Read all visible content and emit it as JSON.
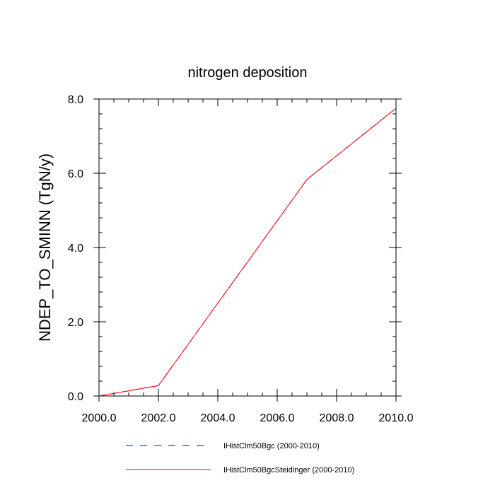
{
  "chart_data": {
    "type": "line",
    "title": "nitrogen deposition",
    "xlabel": "",
    "ylabel": "NDEP_TO_SMINN  (TgN/y)",
    "xlim": [
      2000,
      2010
    ],
    "ylim": [
      0,
      8
    ],
    "x_ticks": [
      "2000.0",
      "2002.0",
      "2004.0",
      "2006.0",
      "2008.0",
      "2010.0"
    ],
    "y_ticks": [
      "0.0",
      "2.0",
      "4.0",
      "6.0",
      "8.0"
    ],
    "grid": false,
    "legend_position": "bottom",
    "series": [
      {
        "name": "IHistClm50Bgc (2000-2010)",
        "color": "#0000ff",
        "style": "dashed",
        "x": [
          2000,
          2002,
          2007,
          2010
        ],
        "y": [
          0.0,
          0.28,
          5.83,
          7.75
        ]
      },
      {
        "name": "IHistClm50BgcSteidinger (2000-2010)",
        "color": "#ff0000",
        "style": "solid",
        "x": [
          2000,
          2002,
          2007,
          2010
        ],
        "y": [
          0.0,
          0.28,
          5.83,
          7.75
        ]
      }
    ]
  }
}
